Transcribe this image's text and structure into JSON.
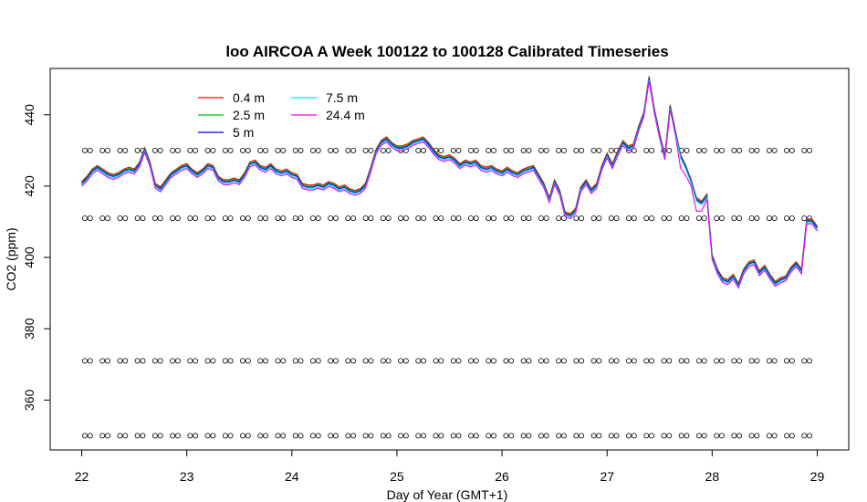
{
  "chart_data": {
    "type": "line",
    "title": "loo AIRCOA A  Week 100122 to 100128  Calibrated Timeseries",
    "xlabel": "Day of Year (GMT+1)",
    "ylabel": "CO2 (ppm)",
    "xlim": [
      21.7,
      29.3
    ],
    "ylim": [
      346,
      453
    ],
    "x_ticks": [
      22,
      23,
      24,
      25,
      26,
      27,
      28,
      29
    ],
    "y_ticks": [
      360,
      380,
      400,
      420,
      440
    ],
    "grid": false,
    "legend_position": "top-left",
    "legend": [
      {
        "label": "0.4 m",
        "color": "#ff0000"
      },
      {
        "label": "2.5 m",
        "color": "#00bb00"
      },
      {
        "label": "5 m",
        "color": "#0000ff"
      },
      {
        "label": "7.5 m",
        "color": "#00e5ee"
      },
      {
        "label": "24.4 m",
        "color": "#ee00ee"
      }
    ],
    "profile": {
      "x": [
        22.0,
        22.05,
        22.1,
        22.15,
        22.2,
        22.25,
        22.3,
        22.35,
        22.4,
        22.45,
        22.5,
        22.55,
        22.6,
        22.65,
        22.7,
        22.75,
        22.8,
        22.85,
        22.9,
        22.95,
        23.0,
        23.05,
        23.1,
        23.15,
        23.2,
        23.25,
        23.3,
        23.35,
        23.4,
        23.45,
        23.5,
        23.55,
        23.6,
        23.65,
        23.7,
        23.75,
        23.8,
        23.85,
        23.9,
        23.95,
        24.0,
        24.05,
        24.1,
        24.15,
        24.2,
        24.25,
        24.3,
        24.35,
        24.4,
        24.45,
        24.5,
        24.55,
        24.6,
        24.65,
        24.7,
        24.75,
        24.8,
        24.85,
        24.9,
        24.95,
        25.0,
        25.05,
        25.1,
        25.15,
        25.2,
        25.25,
        25.3,
        25.35,
        25.4,
        25.45,
        25.5,
        25.55,
        25.6,
        25.65,
        25.7,
        25.75,
        25.8,
        25.85,
        25.9,
        25.95,
        26.0,
        26.05,
        26.1,
        26.15,
        26.2,
        26.25,
        26.3,
        26.35,
        26.4,
        26.45,
        26.5,
        26.55,
        26.6,
        26.65,
        26.7,
        26.75,
        26.8,
        26.85,
        26.9,
        26.95,
        27.0,
        27.05,
        27.1,
        27.15,
        27.2,
        27.25,
        27.3,
        27.35,
        27.4,
        27.45,
        27.5,
        27.55,
        27.6,
        27.65,
        27.7,
        27.75,
        27.8,
        27.85,
        27.9,
        27.95,
        28.0,
        28.05,
        28.1,
        28.15,
        28.2,
        28.25,
        28.3,
        28.35,
        28.4,
        28.45,
        28.5,
        28.55,
        28.6,
        28.65,
        28.7,
        28.75,
        28.8,
        28.85,
        28.9,
        28.95,
        29.0
      ],
      "y": [
        420.5,
        422,
        424,
        425,
        424,
        423,
        422.5,
        423,
        424,
        424.5,
        424,
        426,
        430,
        426,
        420,
        419,
        421,
        423,
        424,
        425,
        425.5,
        424,
        423,
        424,
        425.5,
        425,
        422,
        421,
        421,
        421.5,
        421,
        423,
        426,
        426.5,
        425,
        424.5,
        425.5,
        424,
        423.5,
        424,
        423,
        422.5,
        420,
        419.5,
        419.5,
        420,
        419.5,
        420.5,
        420,
        419,
        419.5,
        418.5,
        418,
        418.5,
        420,
        424.5,
        429.5,
        432,
        433,
        431.5,
        430.5,
        430.5,
        431,
        432,
        432.5,
        433,
        431.5,
        429.5,
        428,
        427.5,
        428,
        427,
        425.5,
        426.5,
        426,
        426.5,
        425,
        424.5,
        425,
        424,
        423.5,
        424.5,
        423.5,
        423,
        424,
        424.5,
        425,
        422.5,
        420,
        416,
        421,
        418,
        412,
        411.5,
        413,
        419,
        421,
        418.5,
        420,
        425,
        428.5,
        425.5,
        429,
        432,
        430.5,
        431,
        436,
        440,
        450,
        441,
        434,
        428,
        442,
        435,
        428,
        425,
        421,
        416,
        415,
        417,
        400,
        396,
        393.5,
        393,
        394.5,
        392,
        396,
        398,
        398.5,
        395.5,
        397,
        394.5,
        392.5,
        393.5,
        394,
        396.5,
        398,
        396,
        410,
        410,
        408
      ]
    },
    "series_offsets": {
      "0.4 m": [
        0.8,
        0.8,
        0.8,
        0.8,
        0.8,
        0.8,
        0.8,
        0.8,
        0.8,
        0.8,
        0.8,
        0.8,
        0.8,
        0.8,
        0.8,
        0.8,
        0.8,
        0.8,
        0.8,
        0.8,
        0.8,
        0.8,
        0.8,
        0.8,
        0.8,
        0.8,
        0.8,
        0.8,
        0.8,
        0.8,
        0.8,
        0.8,
        0.8,
        0.8,
        0.8,
        0.8,
        0.8,
        0.8,
        0.8,
        0.8,
        0.8,
        0.8,
        0.8,
        0.8,
        0.8,
        0.8,
        0.8,
        0.8,
        0.8,
        0.8,
        0.8,
        0.8,
        0.8,
        0.8,
        0.8,
        0.8,
        0.8,
        0.8,
        0.8,
        0.8,
        0.8,
        0.8,
        0.8,
        0.8,
        0.8,
        0.8,
        0.8,
        0.8,
        0.8,
        0.8,
        0.8,
        0.8,
        0.8,
        0.8,
        0.8,
        0.8,
        0.8,
        0.8,
        0.8,
        0.8,
        0.8,
        0.8,
        0.8,
        0.8,
        0.8,
        0.8,
        0.8,
        0.8,
        0.8,
        0.8,
        0.8,
        0.8,
        0.8,
        0.8,
        0.8,
        0.8,
        0.8,
        0.8,
        0.8,
        0.8,
        0.8,
        0.8,
        0.8,
        0.8,
        0.8,
        0.8,
        0.8,
        0.8,
        0.8,
        0.8,
        0.8,
        0.8,
        0.8,
        0.8,
        0.8,
        0.8,
        0.8,
        0.8,
        0.8,
        0.8,
        0.8,
        0.8,
        0.8,
        0.8,
        0.8,
        0.8,
        0.8,
        0.8,
        0.8,
        0.8,
        0.8,
        0.8,
        0.8,
        0.8,
        0.8,
        0.8,
        0.8,
        0.8,
        0.8,
        0.8,
        0.8
      ],
      "2.5 m": [
        0.5,
        0.5,
        0.5,
        0.5,
        0.5,
        0.5,
        0.5,
        0.5,
        0.5,
        0.5,
        0.5,
        0.5,
        0.5,
        0.5,
        0.5,
        0.5,
        0.5,
        0.5,
        0.5,
        0.5,
        0.5,
        0.5,
        0.5,
        0.5,
        0.5,
        0.5,
        0.5,
        0.5,
        0.5,
        0.5,
        0.5,
        0.5,
        0.5,
        0.5,
        0.5,
        0.5,
        0.5,
        0.5,
        0.5,
        0.5,
        0.5,
        0.5,
        0.5,
        0.5,
        0.5,
        0.5,
        0.5,
        0.5,
        0.5,
        0.5,
        0.5,
        0.5,
        0.5,
        0.5,
        0.5,
        0.5,
        0.5,
        0.5,
        0.5,
        0.5,
        0.5,
        0.5,
        0.5,
        0.5,
        0.5,
        0.5,
        0.5,
        0.5,
        0.5,
        0.5,
        0.5,
        0.5,
        0.5,
        0.5,
        0.5,
        0.5,
        0.5,
        0.5,
        0.5,
        0.5,
        0.5,
        0.5,
        0.5,
        0.5,
        0.5,
        0.5,
        0.5,
        0.5,
        0.5,
        0.5,
        0.5,
        0.5,
        0.5,
        0.5,
        0.5,
        0.5,
        0.5,
        0.5,
        0.5,
        0.5,
        0.5,
        0.5,
        0.5,
        0.5,
        0.5,
        0.5,
        0.5,
        0.5,
        0.5,
        0.5,
        0.5,
        0.5,
        0.5,
        0.5,
        0.5,
        0.5,
        0.5,
        0.5,
        0.5,
        0.5,
        0.5,
        0.5,
        0.5,
        0.5,
        0.5,
        0.5,
        0.5,
        0.5,
        0.5,
        0.5,
        0.5,
        0.5,
        0.5,
        0.5,
        0.5,
        0.5,
        0.5,
        0.5,
        0.5,
        0.5,
        0.5
      ],
      "5 m": [
        0.2,
        0.2,
        0.2,
        0.2,
        0.2,
        0.2,
        0.2,
        0.2,
        0.2,
        0.2,
        0.2,
        0.2,
        0.2,
        0.2,
        0.2,
        0.2,
        0.2,
        0.2,
        0.2,
        0.2,
        0.2,
        0.2,
        0.2,
        0.2,
        0.2,
        0.2,
        0.2,
        0.2,
        0.2,
        0.2,
        0.2,
        0.2,
        0.2,
        0.2,
        0.2,
        0.2,
        0.2,
        0.2,
        0.2,
        0.2,
        0.2,
        0.2,
        0.2,
        0.2,
        0.2,
        0.2,
        0.2,
        0.2,
        0.2,
        0.2,
        0.2,
        0.2,
        0.2,
        0.2,
        0.2,
        0.2,
        0.2,
        0.2,
        0.2,
        0.2,
        0.2,
        0.2,
        0.2,
        0.2,
        0.2,
        0.2,
        0.2,
        0.2,
        0.2,
        0.2,
        0.2,
        0.2,
        0.2,
        0.2,
        0.2,
        0.2,
        0.2,
        0.2,
        0.2,
        0.2,
        0.2,
        0.2,
        0.2,
        0.2,
        0.2,
        0.2,
        0.2,
        0.2,
        0.2,
        0.2,
        0.2,
        0.2,
        0.2,
        0.2,
        0.2,
        0.2,
        0.2,
        0.2,
        0.2,
        0.2,
        0.2,
        0.2,
        0.2,
        0.2,
        0.2,
        0.2,
        0.2,
        0.2,
        0.2,
        0.2,
        0.2,
        0.2,
        0.2,
        0.2,
        0.2,
        0.2,
        0.2,
        0.2,
        0.2,
        0.2,
        0.2,
        0.2,
        0.2,
        0.2,
        0.2,
        0.2,
        0.2,
        0.2,
        0.2,
        0.2,
        0.2,
        0.2,
        0.2,
        0.2,
        0.2,
        0.2,
        0.2,
        0.2,
        0.2,
        0.2,
        0.2
      ],
      "7.5 m": [
        -0.2,
        -0.2,
        -0.2,
        -0.2,
        -0.2,
        -0.2,
        -0.2,
        -0.2,
        -0.2,
        -0.2,
        -0.2,
        -0.2,
        -0.2,
        -0.2,
        -0.2,
        -0.2,
        -0.2,
        -0.2,
        -0.2,
        -0.2,
        -0.2,
        -0.2,
        -0.2,
        -0.2,
        -0.2,
        -0.2,
        -0.2,
        -0.2,
        -0.2,
        -0.2,
        -0.2,
        -0.2,
        -0.2,
        -0.2,
        -0.2,
        -0.2,
        -0.2,
        -0.2,
        -0.2,
        -0.2,
        -0.2,
        -0.2,
        -0.2,
        -0.2,
        -0.2,
        -0.2,
        -0.2,
        -0.2,
        -0.2,
        -0.2,
        -0.2,
        -0.2,
        -0.2,
        -0.2,
        -0.2,
        -0.2,
        -0.2,
        -0.2,
        -0.2,
        -0.2,
        -0.2,
        -0.2,
        -0.2,
        -0.2,
        -0.2,
        -0.2,
        -0.2,
        -0.2,
        -0.2,
        -0.2,
        -0.2,
        -0.2,
        -0.2,
        -0.2,
        -0.2,
        -0.2,
        -0.2,
        -0.2,
        -0.2,
        -0.2,
        -0.2,
        -0.2,
        -0.2,
        -0.2,
        -0.2,
        -0.2,
        -0.2,
        -0.2,
        -0.2,
        -0.2,
        -0.2,
        -0.2,
        -0.2,
        -0.2,
        -0.2,
        -0.2,
        -0.2,
        -0.2,
        -0.2,
        -0.2,
        -0.2,
        -0.2,
        -0.2,
        -0.2,
        -0.2,
        -0.2,
        -0.2,
        -0.2,
        -0.2,
        -0.2,
        -0.2,
        -0.2,
        -0.2,
        -0.2,
        -0.2,
        -0.2,
        -0.2,
        -0.2,
        -0.2,
        -0.2,
        -0.2,
        -0.2,
        -0.2,
        -0.2,
        -0.2,
        -0.2,
        -0.2,
        -0.2,
        -0.2,
        -0.2,
        -0.2,
        -0.2,
        -0.2,
        -0.2,
        -0.2,
        -0.2,
        -0.2,
        -0.2,
        -0.2,
        -0.2,
        -0.2
      ],
      "24.4 m": [
        -0.6,
        -0.6,
        -0.6,
        -0.6,
        -0.6,
        -0.6,
        -0.6,
        -0.6,
        -0.6,
        -0.6,
        -0.6,
        -0.6,
        -0.6,
        -0.6,
        -0.6,
        -0.6,
        -0.6,
        -0.6,
        -0.6,
        -0.6,
        -0.6,
        -0.6,
        -0.6,
        -0.6,
        -0.6,
        -0.6,
        -0.6,
        -0.6,
        -0.6,
        -0.6,
        -0.6,
        -0.6,
        -0.6,
        -0.6,
        -0.6,
        -0.6,
        -0.6,
        -0.6,
        -0.6,
        -0.6,
        -0.6,
        -0.6,
        -0.6,
        -0.6,
        -0.6,
        -0.6,
        -0.6,
        -0.6,
        -0.6,
        -0.6,
        -0.6,
        -0.6,
        -0.6,
        -0.6,
        -0.6,
        -0.6,
        -0.6,
        -0.6,
        -0.6,
        -0.6,
        -0.6,
        -0.6,
        -0.6,
        -0.6,
        -0.6,
        -0.6,
        -0.6,
        -0.6,
        -0.6,
        -0.6,
        -0.6,
        -0.6,
        -0.6,
        -0.6,
        -0.6,
        -0.6,
        -0.6,
        -0.6,
        -0.6,
        -0.6,
        -0.6,
        -0.6,
        -0.6,
        -0.6,
        -0.6,
        -0.6,
        -0.6,
        -0.6,
        -0.6,
        -0.6,
        -0.6,
        -0.6,
        -0.6,
        -0.6,
        -0.6,
        -0.6,
        -0.6,
        -0.6,
        -0.6,
        -0.6,
        -0.6,
        -0.6,
        -0.6,
        -0.6,
        -0.6,
        -0.6,
        -0.6,
        -0.6,
        -0.6,
        -0.6,
        -0.6,
        -0.6,
        -0.6,
        -0.6,
        -3,
        -2,
        -1,
        -3,
        -2,
        -0.6,
        -0.6,
        -0.6,
        -0.6,
        -0.6,
        -0.6,
        -0.6,
        -0.6,
        -0.6,
        -0.6,
        -0.6,
        -0.6,
        -0.6,
        -0.6,
        -0.6,
        -0.6,
        -0.6,
        -0.6,
        -0.6,
        -0.6,
        -0.6,
        -0.6
      ]
    },
    "calibration_levels": [
      430,
      411,
      371,
      350
    ],
    "calibration_interval_days": 0.167
  }
}
